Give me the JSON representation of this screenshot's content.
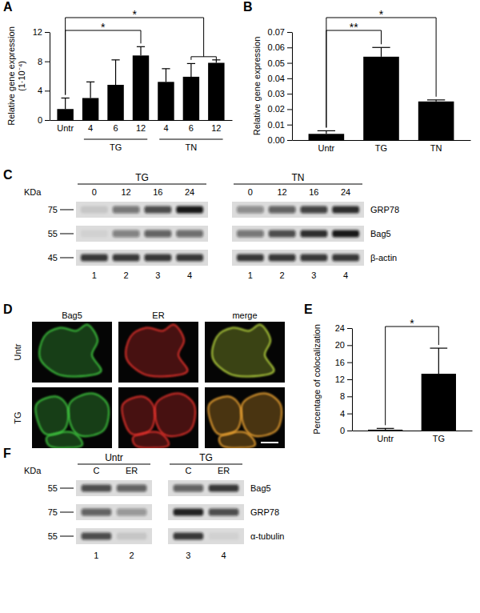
{
  "chart_data": [
    {
      "type": "bar",
      "title": "A",
      "y_label": [
        "Relative gene expression",
        "(1·10⁻⁴)"
      ],
      "categories": [
        "Untr",
        "4",
        "6",
        "12",
        "4",
        "6",
        "12"
      ],
      "values": [
        1.5,
        3.0,
        4.8,
        8.8,
        5.2,
        5.9,
        7.8
      ],
      "errors": [
        1.5,
        2.2,
        3.4,
        1.2,
        1.8,
        1.8,
        0.4
      ],
      "color": "#000000",
      "ylim": [
        0,
        12
      ],
      "yticks": [
        0,
        4,
        8,
        12
      ],
      "groups": [
        {
          "label": "TG",
          "from": 1,
          "to": 3
        },
        {
          "label": "TN",
          "from": 4,
          "to": 6
        }
      ],
      "annotations": [
        {
          "text": "*",
          "from": 0,
          "to": [
            3
          ]
        },
        {
          "text": "*",
          "from": 0,
          "to": [
            5,
            6
          ]
        }
      ]
    },
    {
      "type": "bar",
      "title": "B",
      "y_label": [
        "Relative gene expression"
      ],
      "categories": [
        "Untr",
        "TG",
        "TN"
      ],
      "values": [
        0.004,
        0.054,
        0.025
      ],
      "errors": [
        0.002,
        0.006,
        0.001
      ],
      "color": "#000000",
      "ylim": [
        0,
        0.07
      ],
      "yticks": [
        {
          "value": 0,
          "label": "0.00"
        },
        {
          "value": 0.01,
          "label": "0.01"
        },
        {
          "value": 0.02,
          "label": "0.02"
        },
        {
          "value": 0.03,
          "label": "0.03"
        },
        {
          "value": 0.04,
          "label": "0.04"
        },
        {
          "value": 0.05,
          "label": "0.05"
        },
        {
          "value": 0.06,
          "label": "0.06"
        },
        {
          "value": 0.07,
          "label": "0.07"
        }
      ],
      "annotations": [
        {
          "text": "**",
          "from": 0,
          "to": [
            1
          ]
        },
        {
          "text": "*",
          "from": 0,
          "to": [
            2
          ]
        }
      ]
    },
    {
      "type": "bar",
      "title": "E",
      "y_label": [
        "Percentage of colocalization"
      ],
      "categories": [
        "Untr",
        "TG"
      ],
      "values": [
        0.2,
        13.3
      ],
      "errors": [
        0.3,
        6.0
      ],
      "color": "#000000",
      "ylim": [
        0,
        24
      ],
      "yticks": [
        0,
        4,
        8,
        12,
        16,
        20,
        24
      ],
      "annotations": [
        {
          "text": "*",
          "from": 0,
          "to": [
            1
          ]
        }
      ]
    }
  ],
  "blots": [
    {
      "title": "C",
      "marker_unit": "KDa",
      "proteins": [
        "GRP78",
        "Bag5",
        "β-actin"
      ],
      "markers": [
        75,
        55,
        45
      ],
      "panels": [
        {
          "label": "TG",
          "lanes": [
            0,
            12,
            16,
            24
          ],
          "lane_numbers": [
            1,
            2,
            3,
            4
          ],
          "intensities": [
            [
              0.1,
              0.5,
              0.7,
              0.95
            ],
            [
              0.05,
              0.45,
              0.6,
              0.55
            ],
            [
              0.8,
              0.8,
              0.8,
              0.8
            ]
          ]
        },
        {
          "label": "TN",
          "lanes": [
            0,
            12,
            16,
            24
          ],
          "lane_numbers": [
            1,
            2,
            3,
            4
          ],
          "intensities": [
            [
              0.4,
              0.6,
              0.75,
              0.85
            ],
            [
              0.5,
              0.7,
              0.85,
              0.95
            ],
            [
              0.8,
              0.8,
              0.8,
              0.8
            ]
          ]
        }
      ]
    },
    {
      "title": "F",
      "marker_unit": "KDa",
      "proteins": [
        "Bag5",
        "GRP78",
        "α-tubulin"
      ],
      "markers": [
        55,
        75,
        55
      ],
      "panels": [
        {
          "label": "Untr",
          "lanes": [
            "C",
            "ER"
          ],
          "lane_numbers": [
            1,
            2
          ],
          "intensities": [
            [
              0.7,
              0.6
            ],
            [
              0.6,
              0.35
            ],
            [
              0.7,
              0.1
            ]
          ]
        },
        {
          "label": "TG",
          "lanes": [
            "C",
            "ER"
          ],
          "lane_numbers": [
            3,
            4
          ],
          "intensities": [
            [
              0.6,
              0.8
            ],
            [
              0.9,
              0.7
            ],
            [
              0.8,
              0.05
            ]
          ]
        }
      ]
    }
  ],
  "microscopy": {
    "title": "D",
    "columns": [
      "Bag5",
      "ER",
      "merge"
    ],
    "rows": [
      "Untr",
      "TG"
    ]
  }
}
